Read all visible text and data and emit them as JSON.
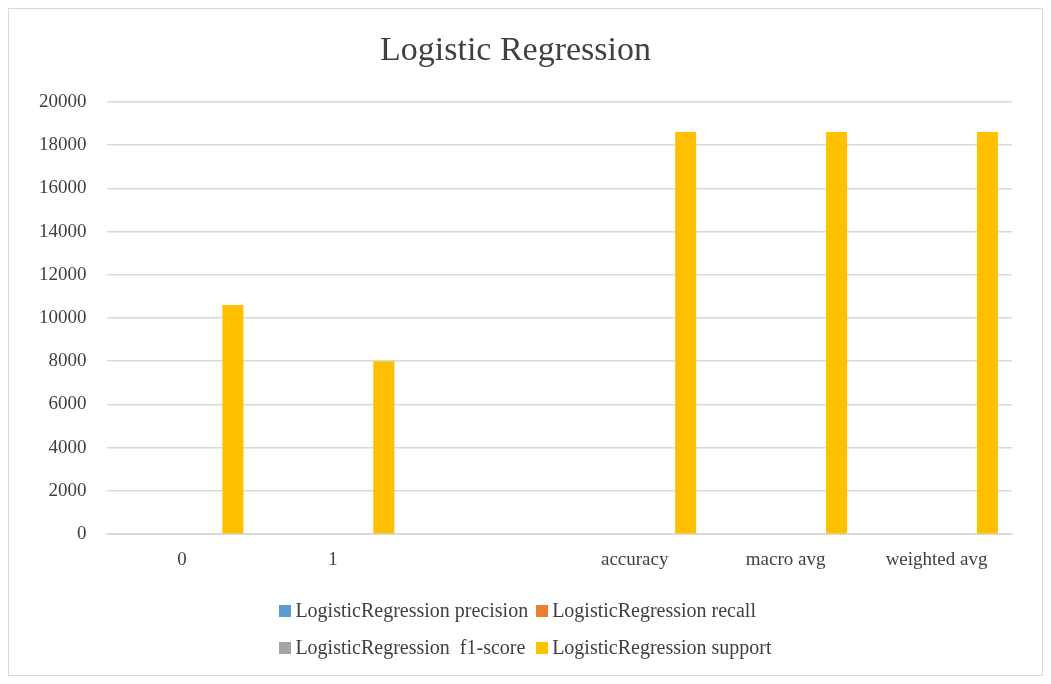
{
  "chart_data": {
    "type": "bar",
    "title": "Logistic Regression",
    "categories": [
      "0",
      "1",
      null,
      "accuracy",
      "macro avg",
      "weighted avg"
    ],
    "series": [
      {
        "name": "LogisticRegression precision",
        "color": "#5b9bd5",
        "values": [
          0,
          0,
          null,
          null,
          0,
          0
        ]
      },
      {
        "name": "LogisticRegression recall",
        "color": "#ed7d31",
        "values": [
          0,
          0,
          null,
          null,
          0,
          0
        ]
      },
      {
        "name": "LogisticRegression  f1-score",
        "color": "#a5a5a5",
        "values": [
          0,
          0,
          null,
          0,
          0,
          0
        ]
      },
      {
        "name": "LogisticRegression support",
        "color": "#ffc000",
        "values": [
          10600,
          8000,
          null,
          18600,
          18600,
          18600
        ]
      }
    ],
    "ylim": [
      0,
      20000
    ],
    "yticks": [
      0,
      2000,
      4000,
      6000,
      8000,
      10000,
      12000,
      14000,
      16000,
      18000,
      20000
    ],
    "grid": "y",
    "legend": "bottom"
  }
}
